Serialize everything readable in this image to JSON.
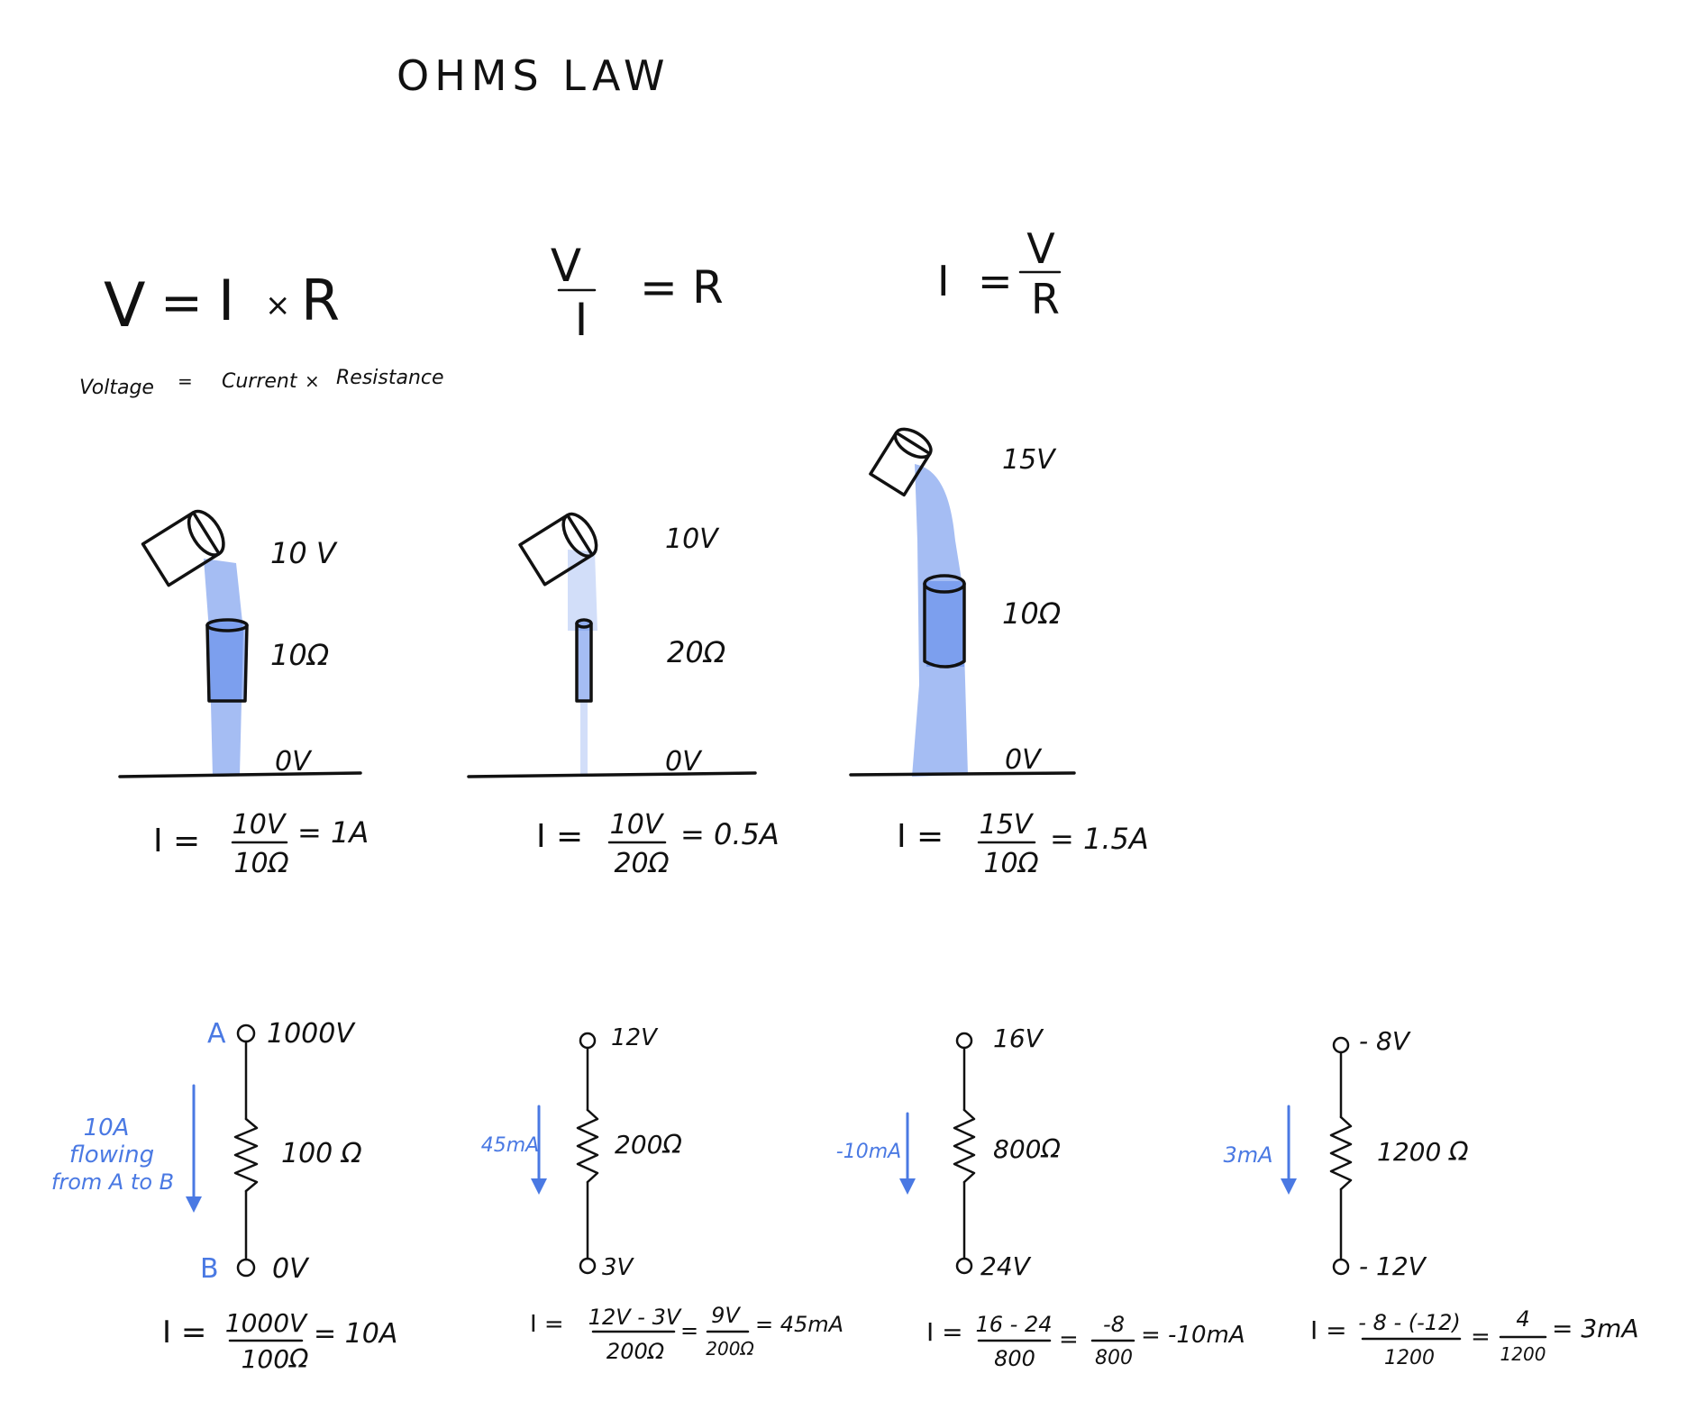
{
  "title": "OHMS LAW",
  "formulas": {
    "f1": {
      "lhs": "V",
      "eq": "=",
      "a": "I",
      "op": "×",
      "b": "R"
    },
    "f2": {
      "num": "V",
      "den": "I",
      "eq": "=",
      "rhs": "R"
    },
    "f3": {
      "lhs": "I",
      "eq": "=",
      "num": "V",
      "den": "R"
    },
    "words": {
      "voltage": "Voltage",
      "eq": "=",
      "current": "Current",
      "op": "×",
      "resistance": "Resistance"
    }
  },
  "water_diagrams": [
    {
      "voltage": "10 V",
      "resistance": "10Ω",
      "ground": "0V",
      "lhs": "I =",
      "num": "10V",
      "den": "10Ω",
      "result": "= 1A"
    },
    {
      "voltage": "10V",
      "resistance": "20Ω",
      "ground": "0V",
      "lhs": "I =",
      "num": "10V",
      "den": "20Ω",
      "result": "= 0.5A"
    },
    {
      "voltage": "15V",
      "resistance": "10Ω",
      "ground": "0V",
      "lhs": "I =",
      "num": "15V",
      "den": "10Ω",
      "result": "= 1.5A"
    }
  ],
  "circuits": [
    {
      "top_node": "A",
      "top_v": "1000V",
      "bottom_node": "B",
      "bottom_v": "0V",
      "resistance": "100 Ω",
      "current_label": [
        "10A",
        "flowing",
        "from A to B"
      ],
      "lhs": "I =",
      "num": "1000V",
      "den": "100Ω",
      "result": "= 10A"
    },
    {
      "top_v": "12V",
      "bottom_v": "3V",
      "resistance": "200Ω",
      "current_label": [
        "45mA"
      ],
      "lhs": "I =",
      "num": "12V - 3V",
      "den": "200Ω",
      "eq2": "=",
      "num2": "9V",
      "den2": "200Ω",
      "result": "= 45mA"
    },
    {
      "top_v": "16V",
      "bottom_v": "24V",
      "resistance": "800Ω",
      "current_label": [
        "-10mA"
      ],
      "lhs": "I =",
      "num": "16 - 24",
      "den": "800",
      "eq2": "=",
      "num2": "-8",
      "den2": "800",
      "result": "= -10mA"
    },
    {
      "top_v": "- 8V",
      "bottom_v": "- 12V",
      "resistance": "1200 Ω",
      "current_label": [
        "3mA"
      ],
      "lhs": "I =",
      "num": "- 8 - (-12)",
      "den": "1200",
      "eq2": "=",
      "num2": "4",
      "den2": "1200",
      "result": "= 3mA"
    }
  ],
  "colors": {
    "ink": "#111111",
    "water": "#5b86ea",
    "annotation": "#4a79e3"
  }
}
